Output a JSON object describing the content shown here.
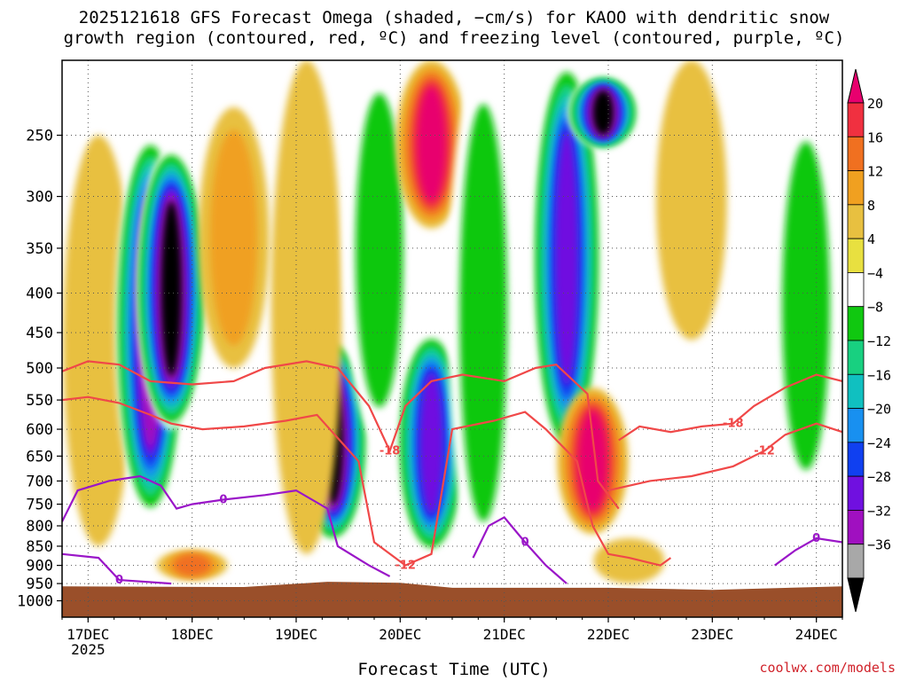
{
  "title_line1": "2025121618 GFS Forecast Omega (shaded, −cm/s) for KAOO with dendritic snow",
  "title_line2": "growth region (contoured, red, ºC) and freezing level (contoured, purple, ºC)",
  "credit": "coolwx.com/models",
  "chart_data": {
    "type": "heatmap",
    "xlabel": "Forecast Time (UTC)",
    "ylabel": "",
    "x_ticks": [
      "17DEC",
      "18DEC",
      "19DEC",
      "20DEC",
      "21DEC",
      "22DEC",
      "23DEC",
      "24DEC"
    ],
    "x_year_label": "2025",
    "x_range_days": [
      16.75,
      24.25
    ],
    "y_range_hpa": [
      200,
      1050
    ],
    "y_ticks": [
      250,
      300,
      350,
      400,
      450,
      500,
      550,
      600,
      650,
      700,
      750,
      800,
      850,
      900,
      950,
      1000
    ],
    "y_log_scale": true,
    "grid": true,
    "colorbar": {
      "labels": [
        "20",
        "16",
        "12",
        "8",
        "4",
        "−4",
        "−8",
        "−12",
        "−16",
        "−20",
        "−24",
        "−28",
        "−32",
        "−36"
      ],
      "colors": [
        "#e8006e",
        "#f03040",
        "#f07020",
        "#f0a020",
        "#e8c040",
        "#e8e040",
        "#ffffff",
        "#10c810",
        "#18d080",
        "#10c0c0",
        "#1890f0",
        "#1040f0",
        "#7010e0",
        "#a010c0",
        "#a8a8a8",
        "#000000"
      ],
      "top_triangle": "#e8006e",
      "bottom_triangle": "#000000"
    },
    "omega_features": [
      {
        "day": 17.1,
        "p_top": 250,
        "p_bot": 850,
        "value": 6
      },
      {
        "day": 17.6,
        "p_top": 250,
        "p_bot": 780,
        "value": -34
      },
      {
        "day": 17.8,
        "p_top": 260,
        "p_bot": 600,
        "value": -36
      },
      {
        "day": 18.4,
        "p_top": 230,
        "p_bot": 500,
        "value": 8
      },
      {
        "day": 19.35,
        "p_top": 460,
        "p_bot": 840,
        "value": -36
      },
      {
        "day": 19.1,
        "p_top": 200,
        "p_bot": 870,
        "value": 6
      },
      {
        "day": 19.8,
        "p_top": 200,
        "p_bot": 620,
        "value": -8
      },
      {
        "day": 20.3,
        "p_top": 450,
        "p_bot": 870,
        "value": -28
      },
      {
        "day": 20.3,
        "p_top": 200,
        "p_bot": 330,
        "value": 20
      },
      {
        "day": 20.8,
        "p_top": 200,
        "p_bot": 900,
        "value": -8
      },
      {
        "day": 21.6,
        "p_top": 200,
        "p_bot": 650,
        "value": -28
      },
      {
        "day": 21.95,
        "p_top": 210,
        "p_bot": 260,
        "value": -36
      },
      {
        "day": 21.85,
        "p_top": 530,
        "p_bot": 820,
        "value": 20
      },
      {
        "day": 22.8,
        "p_top": 200,
        "p_bot": 460,
        "value": 6
      },
      {
        "day": 23.9,
        "p_top": 230,
        "p_bot": 750,
        "value": -8
      },
      {
        "day": 18.0,
        "p_top": 860,
        "p_bot": 940,
        "value": 14
      },
      {
        "day": 22.2,
        "p_top": 830,
        "p_bot": 950,
        "value": 6
      }
    ],
    "dgz_contours": [
      {
        "label": "-18",
        "points": [
          [
            16.75,
            505
          ],
          [
            17.0,
            490
          ],
          [
            17.3,
            495
          ],
          [
            17.6,
            520
          ],
          [
            18.0,
            525
          ],
          [
            18.4,
            520
          ],
          [
            18.7,
            500
          ],
          [
            19.1,
            490
          ],
          [
            19.4,
            500
          ],
          [
            19.7,
            560
          ],
          [
            19.9,
            640
          ],
          [
            20.05,
            560
          ],
          [
            20.3,
            520
          ],
          [
            20.6,
            510
          ],
          [
            21.0,
            520
          ],
          [
            21.3,
            500
          ],
          [
            21.5,
            495
          ],
          [
            21.8,
            540
          ],
          [
            21.9,
            700
          ],
          [
            22.1,
            760
          ]
        ]
      },
      {
        "label": "-12",
        "points": [
          [
            16.75,
            550
          ],
          [
            17.0,
            545
          ],
          [
            17.3,
            555
          ],
          [
            17.6,
            575
          ],
          [
            17.8,
            590
          ],
          [
            18.1,
            600
          ],
          [
            18.5,
            595
          ],
          [
            18.9,
            585
          ],
          [
            19.2,
            575
          ],
          [
            19.6,
            660
          ],
          [
            19.75,
            840
          ],
          [
            20.05,
            900
          ],
          [
            20.3,
            870
          ],
          [
            20.5,
            600
          ],
          [
            20.9,
            585
          ],
          [
            21.2,
            570
          ],
          [
            21.4,
            600
          ],
          [
            21.7,
            660
          ],
          [
            21.85,
            800
          ],
          [
            22.0,
            870
          ],
          [
            22.2,
            880
          ],
          [
            22.5,
            900
          ],
          [
            22.6,
            880
          ]
        ]
      },
      {
        "label": "-18",
        "points": [
          [
            22.1,
            620
          ],
          [
            22.3,
            595
          ],
          [
            22.6,
            605
          ],
          [
            22.9,
            595
          ],
          [
            23.2,
            590
          ],
          [
            23.4,
            560
          ],
          [
            23.7,
            530
          ],
          [
            24.0,
            510
          ],
          [
            24.25,
            520
          ]
        ]
      },
      {
        "label": "-12",
        "points": [
          [
            22.0,
            720
          ],
          [
            22.4,
            700
          ],
          [
            22.8,
            690
          ],
          [
            23.2,
            670
          ],
          [
            23.5,
            640
          ],
          [
            23.7,
            610
          ],
          [
            24.0,
            590
          ],
          [
            24.25,
            605
          ]
        ]
      }
    ],
    "freezing_contours": [
      {
        "label": "0",
        "points": [
          [
            16.75,
            790
          ],
          [
            16.9,
            720
          ],
          [
            17.2,
            700
          ],
          [
            17.5,
            690
          ],
          [
            17.7,
            710
          ],
          [
            17.85,
            760
          ],
          [
            18.0,
            750
          ],
          [
            18.3,
            740
          ],
          [
            18.7,
            730
          ],
          [
            19.0,
            720
          ],
          [
            19.3,
            760
          ],
          [
            19.4,
            850
          ],
          [
            19.7,
            900
          ],
          [
            19.9,
            930
          ]
        ]
      },
      {
        "label": "0",
        "points": [
          [
            16.75,
            870
          ],
          [
            17.1,
            880
          ],
          [
            17.3,
            940
          ],
          [
            17.8,
            950
          ]
        ]
      },
      {
        "label": "0",
        "points": [
          [
            20.7,
            880
          ],
          [
            20.85,
            800
          ],
          [
            21.0,
            780
          ],
          [
            21.2,
            840
          ],
          [
            21.4,
            900
          ],
          [
            21.6,
            950
          ]
        ]
      },
      {
        "label": "0",
        "points": [
          [
            23.6,
            900
          ],
          [
            23.8,
            860
          ],
          [
            24.0,
            830
          ],
          [
            24.25,
            840
          ]
        ]
      }
    ]
  }
}
